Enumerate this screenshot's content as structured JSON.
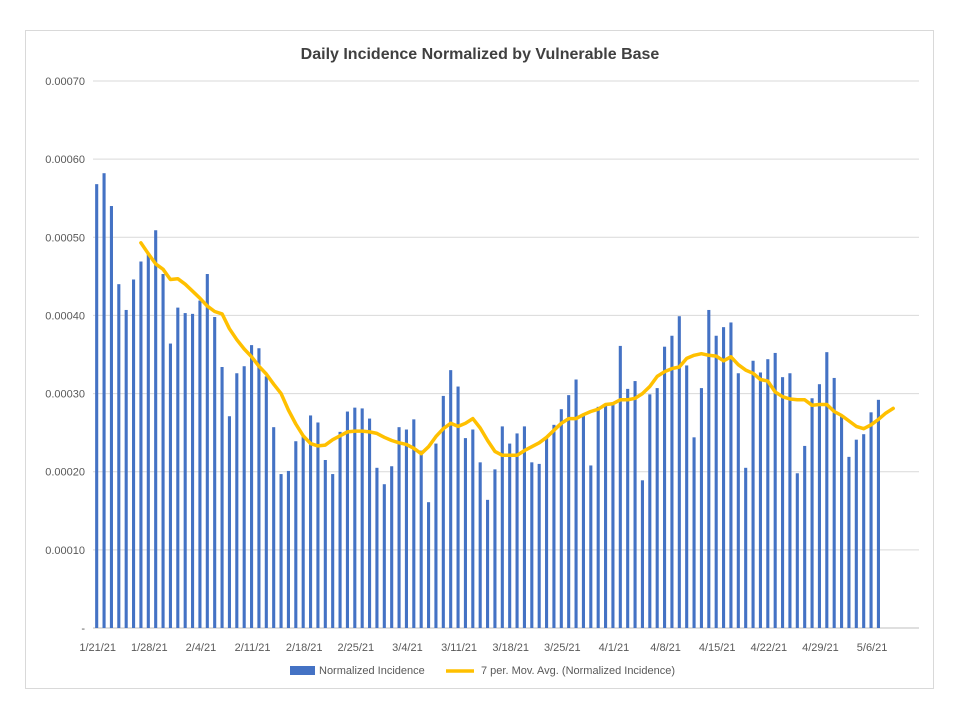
{
  "chart_data": {
    "type": "bar",
    "title": "Daily Incidence Normalized by Vulnerable Base",
    "xlabel": "",
    "ylabel": "",
    "ylim": [
      0,
      0.0007
    ],
    "y_ticks": [
      {
        "value": 0,
        "label": "-"
      },
      {
        "value": 0.0001,
        "label": "0.00010"
      },
      {
        "value": 0.0002,
        "label": "0.00020"
      },
      {
        "value": 0.0003,
        "label": "0.00030"
      },
      {
        "value": 0.0004,
        "label": "0.00040"
      },
      {
        "value": 0.0005,
        "label": "0.00050"
      },
      {
        "value": 0.0006,
        "label": "0.00060"
      },
      {
        "value": 0.0007,
        "label": "0.00070"
      }
    ],
    "x_tick_labels": [
      {
        "day_index": 0,
        "label": "1/21/21"
      },
      {
        "day_index": 7,
        "label": "1/28/21"
      },
      {
        "day_index": 14,
        "label": "2/4/21"
      },
      {
        "day_index": 21,
        "label": "2/11/21"
      },
      {
        "day_index": 28,
        "label": "2/18/21"
      },
      {
        "day_index": 35,
        "label": "2/25/21"
      },
      {
        "day_index": 42,
        "label": "3/4/21"
      },
      {
        "day_index": 49,
        "label": "3/11/21"
      },
      {
        "day_index": 56,
        "label": "3/18/21"
      },
      {
        "day_index": 63,
        "label": "3/25/21"
      },
      {
        "day_index": 70,
        "label": "4/1/21"
      },
      {
        "day_index": 77,
        "label": "4/8/21"
      },
      {
        "day_index": 84,
        "label": "4/15/21"
      },
      {
        "day_index": 91,
        "label": "4/22/21"
      },
      {
        "day_index": 98,
        "label": "4/29/21"
      },
      {
        "day_index": 105,
        "label": "5/6/21"
      }
    ],
    "grid": true,
    "legend_position": "bottom",
    "series": [
      {
        "name": "Normalized Incidence",
        "type": "bar",
        "color": "#4472C4",
        "values": [
          0.000568,
          0.000582,
          0.00054,
          0.00044,
          0.000407,
          0.000446,
          0.000469,
          0.00048,
          0.000509,
          0.000453,
          0.000364,
          0.00041,
          0.000403,
          0.000402,
          0.000419,
          0.000453,
          0.000398,
          0.000334,
          0.000271,
          0.000326,
          0.000335,
          0.000362,
          0.000358,
          0.000322,
          0.000257,
          0.000197,
          0.000201,
          0.000239,
          0.000245,
          0.000272,
          0.000263,
          0.000215,
          0.000197,
          0.000251,
          0.000277,
          0.000282,
          0.000281,
          0.000268,
          0.000205,
          0.000184,
          0.000207,
          0.000257,
          0.000254,
          0.000267,
          0.000227,
          0.000161,
          0.000236,
          0.000297,
          0.00033,
          0.000309,
          0.000243,
          0.000254,
          0.000212,
          0.000164,
          0.000203,
          0.000258,
          0.000236,
          0.000249,
          0.000258,
          0.000212,
          0.00021,
          0.000244,
          0.00026,
          0.00028,
          0.000298,
          0.000318,
          0.000272,
          0.000208,
          0.000283,
          0.000286,
          0.000289,
          0.000361,
          0.000306,
          0.000316,
          0.000189,
          0.000299,
          0.000307,
          0.00036,
          0.000374,
          0.000399,
          0.000336,
          0.000244,
          0.000307,
          0.000407,
          0.000374,
          0.000385,
          0.000391,
          0.000326,
          0.000205,
          0.000342,
          0.000327,
          0.000344,
          0.000352,
          0.000321,
          0.000326,
          0.000198,
          0.000233,
          0.000294,
          0.000312,
          0.000353,
          0.00032,
          0.000272,
          0.000219,
          0.000241,
          0.000248,
          0.000276,
          0.000292,
          0.0,
          0.0,
          0.0,
          0.0,
          0.0
        ]
      },
      {
        "name": "7 per. Mov. Avg. (Normalized Incidence)",
        "type": "line",
        "color": "#FFC000",
        "x_start": 6,
        "values": [
          0.000493,
          0.000479,
          0.000466,
          0.000459,
          0.000446,
          0.000447,
          0.00044,
          0.000431,
          0.000422,
          0.000412,
          0.000405,
          0.000402,
          0.000383,
          0.000369,
          0.000357,
          0.000347,
          0.000335,
          0.000325,
          0.000312,
          0.0003,
          0.000279,
          0.000261,
          0.000246,
          0.000236,
          0.000233,
          0.000234,
          0.000241,
          0.000246,
          0.000251,
          0.000252,
          0.000252,
          0.000251,
          0.000249,
          0.000244,
          0.00024,
          0.000237,
          0.000235,
          0.00023,
          0.000223,
          0.000232,
          0.000245,
          0.000255,
          0.000262,
          0.000258,
          0.000262,
          0.000268,
          0.000256,
          0.00024,
          0.000226,
          0.000221,
          0.000221,
          0.000221,
          0.000227,
          0.000232,
          0.000237,
          0.000244,
          0.000253,
          0.000262,
          0.000268,
          0.000268,
          0.000273,
          0.000277,
          0.00028,
          0.000286,
          0.000287,
          0.000292,
          0.000292,
          0.000294,
          0.0003,
          0.000309,
          0.000322,
          0.000328,
          0.000332,
          0.000334,
          0.000345,
          0.000349,
          0.000351,
          0.000349,
          0.000348,
          0.000342,
          0.000347,
          0.000337,
          0.00033,
          0.000326,
          0.000318,
          0.000316,
          0.000302,
          0.000296,
          0.000293,
          0.000292,
          0.000292,
          0.000285,
          0.000286,
          0.000286,
          0.000277,
          0.000272,
          0.000265,
          0.000258,
          0.000255,
          0.00026,
          0.000267,
          0.000275,
          0.000281
        ]
      }
    ]
  }
}
